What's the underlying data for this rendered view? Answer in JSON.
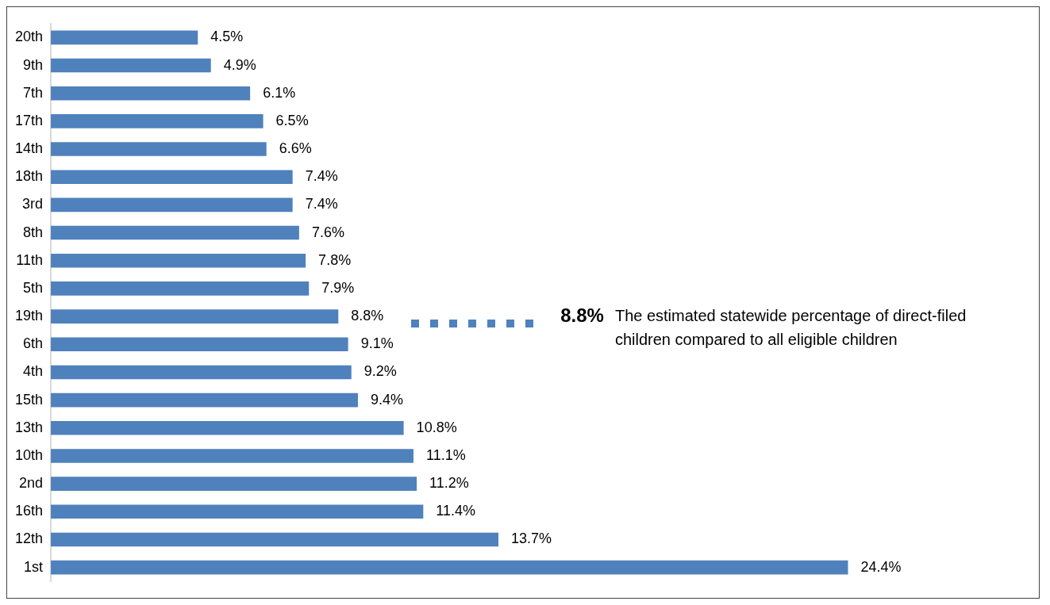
{
  "chart_data": {
    "type": "bar",
    "orientation": "horizontal",
    "categories": [
      "20th",
      "9th",
      "7th",
      "17th",
      "14th",
      "18th",
      "3rd",
      "8th",
      "11th",
      "5th",
      "19th",
      "6th",
      "4th",
      "15th",
      "13th",
      "10th",
      "2nd",
      "16th",
      "12th",
      "1st"
    ],
    "values": [
      4.5,
      4.9,
      6.1,
      6.5,
      6.6,
      7.4,
      7.4,
      7.6,
      7.8,
      7.9,
      8.8,
      9.1,
      9.2,
      9.4,
      10.8,
      11.1,
      11.2,
      11.4,
      13.7,
      24.4
    ],
    "value_labels": [
      "4.5%",
      "4.9%",
      "6.1%",
      "6.5%",
      "6.6%",
      "7.4%",
      "7.4%",
      "7.6%",
      "7.8%",
      "7.9%",
      "8.8%",
      "9.1%",
      "9.2%",
      "9.4%",
      "10.8%",
      "11.1%",
      "11.2%",
      "11.4%",
      "13.7%",
      "24.4%"
    ],
    "color": "#4f81bd",
    "legend": false,
    "annotations": [
      "8.8%",
      "The estimated statewide percentage of direct-filed children compared to all eligible children"
    ]
  }
}
